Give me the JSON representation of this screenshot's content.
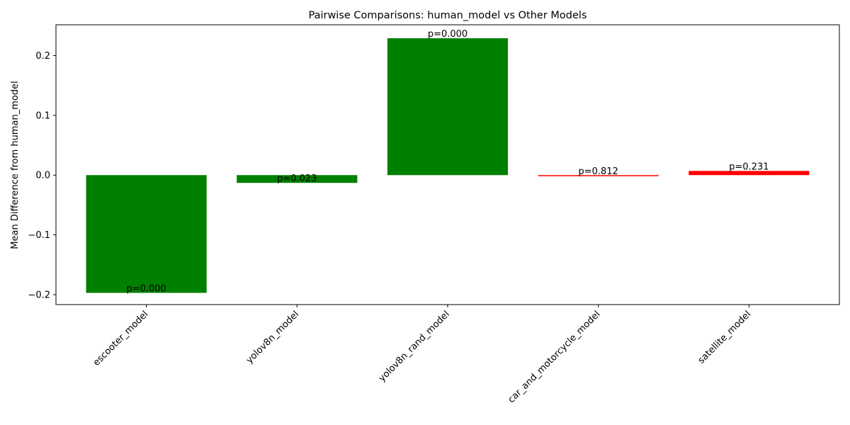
{
  "chart_data": {
    "type": "bar",
    "title": "Pairwise Comparisons: human_model vs Other Models",
    "xlabel": "",
    "ylabel": "Mean Difference from human_model",
    "ylim": [
      -0.2166,
      0.2515
    ],
    "yticks": [
      -0.2,
      -0.1,
      0.0,
      0.1,
      0.2
    ],
    "ytick_labels": [
      "−0.2",
      "−0.1",
      "0.0",
      "0.1",
      "0.2"
    ],
    "grid": false,
    "categories": [
      "escooter_model",
      "yolov8n_model",
      "yolov8n_rand_model",
      "car_and_motorcycle_model",
      "satellite_model"
    ],
    "values": [
      -0.197,
      -0.013,
      0.229,
      -0.001,
      0.007
    ],
    "p_labels": [
      "p=0.000",
      "p=0.023",
      "p=0.000",
      "p=0.812",
      "p=0.231"
    ],
    "colors": [
      "#008000",
      "#008000",
      "#008000",
      "#ff0000",
      "#ff0000"
    ]
  }
}
